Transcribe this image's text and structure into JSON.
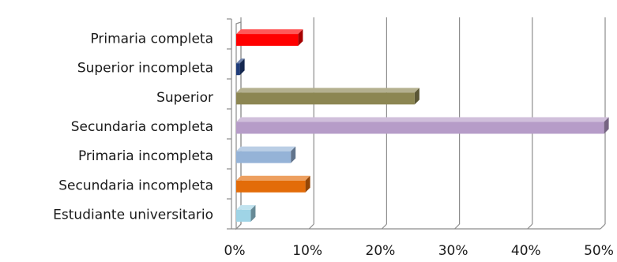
{
  "chart_data": {
    "type": "bar",
    "orientation": "horizontal",
    "style": "3d",
    "grid": true,
    "categories": [
      "Primaria completa",
      "Superior incompleta",
      "Superior",
      "Secundaria completa",
      "Primaria incompleta",
      "Secundaria incompleta",
      "Estudiante universitario"
    ],
    "values": [
      8.5,
      0.5,
      24.5,
      50.5,
      7.5,
      9.5,
      2.0
    ],
    "colors": [
      "#ff0000",
      "#1f3c7a",
      "#8c8652",
      "#b69cc8",
      "#95b3d7",
      "#e36c09",
      "#9fd4e6"
    ],
    "xlim": [
      0,
      50
    ],
    "xticks": [
      "0%",
      "10%",
      "20%",
      "30%",
      "40%",
      "50%"
    ],
    "title": "",
    "xlabel": "",
    "ylabel": ""
  }
}
